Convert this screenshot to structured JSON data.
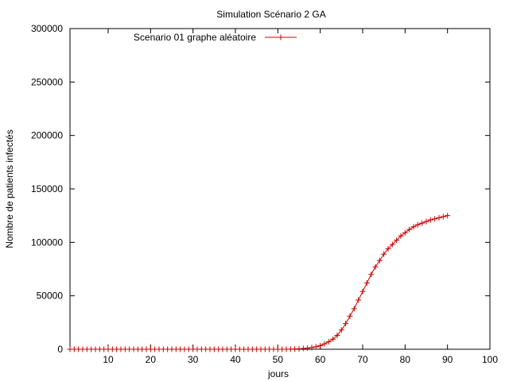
{
  "chart_data": {
    "type": "line",
    "title": "Simulation Scénario 2 GA",
    "xlabel": "jours",
    "ylabel": "Nombre de patients infectés",
    "xlim": [
      1,
      100
    ],
    "ylim": [
      0,
      300000
    ],
    "xticks": [
      10,
      20,
      30,
      40,
      50,
      60,
      70,
      80,
      90,
      100
    ],
    "yticks": [
      0,
      50000,
      100000,
      150000,
      200000,
      250000,
      300000
    ],
    "grid": false,
    "legend_position": "top-left",
    "series": [
      {
        "name": "Scenario 01 graphe aléatoire",
        "color": "#cc0000",
        "marker": "plus",
        "x": [
          1,
          2,
          3,
          4,
          5,
          6,
          7,
          8,
          9,
          10,
          11,
          12,
          13,
          14,
          15,
          16,
          17,
          18,
          19,
          20,
          21,
          22,
          23,
          24,
          25,
          26,
          27,
          28,
          29,
          30,
          31,
          32,
          33,
          34,
          35,
          36,
          37,
          38,
          39,
          40,
          41,
          42,
          43,
          44,
          45,
          46,
          47,
          48,
          49,
          50,
          51,
          52,
          53,
          54,
          55,
          56,
          57,
          58,
          59,
          60,
          61,
          62,
          63,
          64,
          65,
          66,
          67,
          68,
          69,
          70,
          71,
          72,
          73,
          74,
          75,
          76,
          77,
          78,
          79,
          80,
          81,
          82,
          83,
          84,
          85,
          86,
          87,
          88,
          89,
          90
        ],
        "y": [
          0,
          0,
          0,
          0,
          0,
          0,
          0,
          0,
          0,
          0,
          0,
          0,
          0,
          0,
          0,
          0,
          0,
          0,
          0,
          0,
          0,
          0,
          0,
          0,
          0,
          0,
          0,
          0,
          0,
          0,
          0,
          0,
          0,
          0,
          0,
          0,
          0,
          0,
          0,
          0,
          0,
          0,
          0,
          0,
          0,
          0,
          0,
          0,
          0,
          0,
          0,
          0,
          100,
          200,
          400,
          700,
          1000,
          1600,
          2300,
          3300,
          5000,
          7000,
          9500,
          13000,
          18000,
          24000,
          31000,
          38000,
          46000,
          54000,
          62000,
          70000,
          77000,
          83000,
          89000,
          94000,
          98000,
          102000,
          106000,
          109000,
          112000,
          114500,
          116500,
          118000,
          119500,
          121000,
          122000,
          123000,
          124000,
          125000
        ]
      }
    ]
  }
}
